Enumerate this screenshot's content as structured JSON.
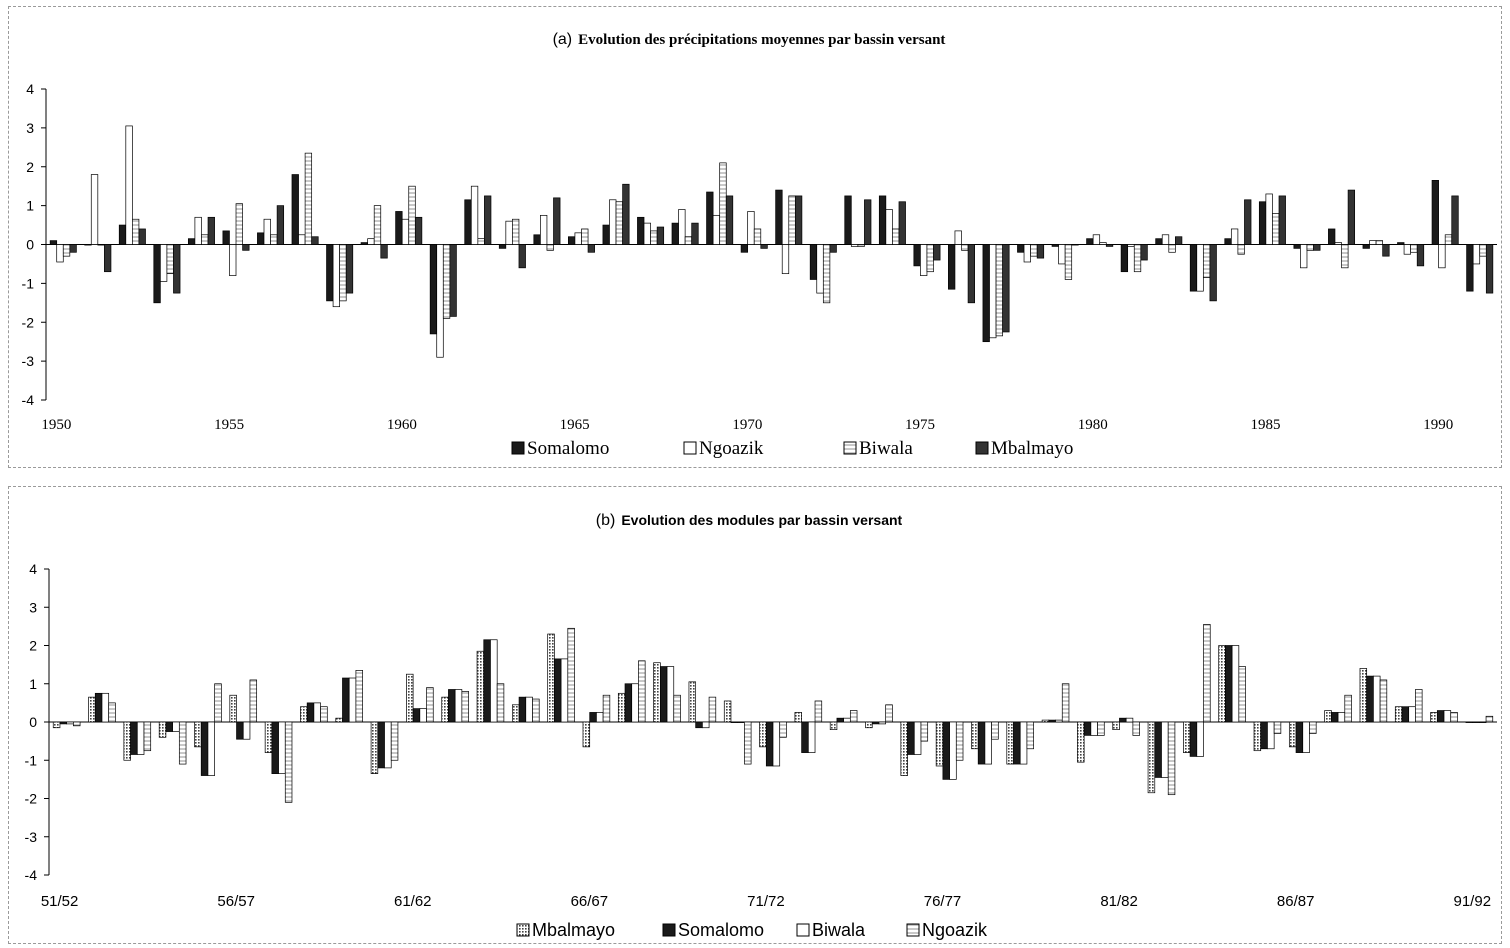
{
  "chart_data": [
    {
      "type": "bar",
      "title_prefix": "(a)",
      "title": "Evolution des précipitations moyennes par bassin versant",
      "x": [
        1950,
        1951,
        1952,
        1953,
        1954,
        1955,
        1956,
        1957,
        1958,
        1959,
        1960,
        1961,
        1962,
        1963,
        1964,
        1965,
        1966,
        1967,
        1968,
        1969,
        1970,
        1971,
        1972,
        1973,
        1974,
        1975,
        1976,
        1977,
        1978,
        1979,
        1980,
        1981,
        1982,
        1983,
        1984,
        1985,
        1986,
        1987,
        1988,
        1989,
        1990,
        1991
      ],
      "x_tick_labels": [
        "1950",
        "1955",
        "1960",
        "1965",
        "1970",
        "1975",
        "1980",
        "1985",
        "1990"
      ],
      "ylim": [
        -4,
        4
      ],
      "y_ticks": [
        "4",
        "3",
        "2",
        "1",
        "0",
        "-1",
        "-2",
        "-3",
        "-4"
      ],
      "legend_position": "bottom",
      "series": [
        {
          "name": "Somalomo",
          "color": "#1a1a1a",
          "values": [
            0.1,
            0.0,
            0.5,
            -1.5,
            0.15,
            0.35,
            0.3,
            1.8,
            -1.45,
            0.05,
            0.85,
            -2.3,
            1.15,
            -0.1,
            0.25,
            0.2,
            0.5,
            0.7,
            0.55,
            1.35,
            -0.2,
            1.4,
            -0.9,
            1.25,
            1.25,
            -0.55,
            -1.15,
            -2.5,
            -0.2,
            -0.05,
            0.15,
            -0.7,
            0.15,
            -1.2,
            0.15,
            1.1,
            -0.1,
            0.4,
            -0.1,
            0.05,
            1.65,
            -1.2
          ]
        },
        {
          "name": "Ngoazik",
          "color": "#ffffff",
          "values": [
            -0.45,
            1.8,
            3.05,
            -0.95,
            0.7,
            -0.8,
            0.65,
            0.25,
            -1.6,
            0.15,
            0.65,
            -2.9,
            1.5,
            0.6,
            0.75,
            0.3,
            1.15,
            0.55,
            0.9,
            0.75,
            0.85,
            -0.75,
            -1.25,
            -0.05,
            0.9,
            -0.8,
            0.35,
            -2.4,
            -0.45,
            -0.5,
            0.25,
            -0.05,
            0.25,
            -1.2,
            0.4,
            1.3,
            -0.6,
            0.05,
            0.1,
            -0.25,
            -0.6,
            -0.5
          ]
        },
        {
          "name": "Biwala",
          "color": "#ffffff",
          "values": [
            -0.3,
            0.0,
            0.65,
            -0.75,
            0.25,
            1.05,
            0.25,
            2.35,
            -1.45,
            1.0,
            1.5,
            -1.9,
            0.15,
            0.65,
            -0.15,
            0.4,
            1.1,
            0.35,
            0.2,
            2.1,
            0.4,
            1.25,
            -1.5,
            -0.05,
            0.4,
            -0.7,
            -0.15,
            -2.35,
            -0.3,
            -0.9,
            0.05,
            -0.7,
            -0.2,
            -0.85,
            -0.25,
            0.8,
            -0.15,
            -0.6,
            0.1,
            -0.2,
            0.25,
            -0.3
          ]
        },
        {
          "name": "Mbalmayo",
          "color": "#333333",
          "values": [
            -0.2,
            -0.7,
            0.4,
            -1.25,
            0.7,
            -0.15,
            1.0,
            0.2,
            -1.25,
            -0.35,
            0.7,
            -1.85,
            1.25,
            -0.6,
            1.2,
            -0.2,
            1.55,
            0.45,
            0.55,
            1.25,
            -0.1,
            1.25,
            -0.2,
            1.15,
            1.1,
            -0.4,
            -1.5,
            -2.25,
            -0.35,
            0.0,
            -0.05,
            -0.4,
            0.2,
            -1.45,
            1.15,
            1.25,
            -0.15,
            1.4,
            -0.3,
            -0.55,
            1.25,
            -1.25
          ]
        }
      ]
    },
    {
      "type": "bar",
      "title_prefix": "(b)",
      "title": "Evolution des modules par bassin versant",
      "x": [
        "51/52",
        "52/53",
        "53/54",
        "54/55",
        "55/56",
        "56/57",
        "57/58",
        "58/59",
        "59/60",
        "60/61",
        "61/62",
        "62/63",
        "63/64",
        "64/65",
        "65/66",
        "66/67",
        "67/68",
        "68/69",
        "69/70",
        "70/71",
        "71/72",
        "72/73",
        "73/74",
        "74/75",
        "75/76",
        "76/77",
        "77/78",
        "78/79",
        "79/80",
        "80/81",
        "81/82",
        "82/83",
        "83/84",
        "84/85",
        "85/86",
        "86/87",
        "87/88",
        "88/89",
        "89/90",
        "90/91",
        "91/92"
      ],
      "x_tick_labels": [
        "51/52",
        "56/57",
        "61/62",
        "66/67",
        "71/72",
        "76/77",
        "81/82",
        "86/87",
        "91/92"
      ],
      "ylim": [
        -4,
        4
      ],
      "y_ticks": [
        "4",
        "3",
        "2",
        "1",
        "0",
        "-1",
        "-2",
        "-3",
        "-4"
      ],
      "legend_position": "bottom",
      "series": [
        {
          "name": "Mbalmayo",
          "color": "#9a9a9a",
          "values": [
            -0.15,
            0.65,
            -1.0,
            -0.4,
            -0.65,
            0.7,
            -0.8,
            0.4,
            0.1,
            -1.35,
            1.25,
            0.65,
            1.85,
            0.45,
            2.3,
            -0.65,
            0.75,
            1.55,
            1.05,
            0.55,
            -0.65,
            0.25,
            -0.2,
            -0.15,
            -1.4,
            -1.15,
            -0.7,
            -1.1,
            0.05,
            -1.05,
            -0.2,
            -1.85,
            -0.8,
            2.0,
            -0.75,
            -0.65,
            0.3,
            1.4,
            0.4,
            0.25,
            0.0
          ]
        },
        {
          "name": "Somalomo",
          "color": "#1a1a1a",
          "values": [
            -0.05,
            0.75,
            -0.85,
            -0.25,
            -1.4,
            -0.45,
            -1.35,
            0.5,
            1.15,
            -1.2,
            0.35,
            0.85,
            2.15,
            0.65,
            1.65,
            0.25,
            1.0,
            1.45,
            -0.15,
            0.0,
            -1.15,
            -0.8,
            0.1,
            -0.05,
            -0.85,
            -1.5,
            -1.1,
            -1.1,
            0.05,
            -0.35,
            0.1,
            -1.45,
            -0.9,
            2.0,
            -0.7,
            -0.8,
            0.25,
            1.2,
            0.4,
            0.3,
            0.0
          ]
        },
        {
          "name": "Biwala",
          "color": "#ffffff",
          "values": [
            -0.05,
            0.75,
            -0.85,
            -0.25,
            -1.4,
            -0.45,
            -1.35,
            0.5,
            1.15,
            -1.2,
            0.35,
            0.85,
            2.15,
            0.65,
            1.65,
            0.25,
            1.0,
            1.45,
            -0.15,
            0.0,
            -1.15,
            -0.8,
            0.1,
            -0.05,
            -0.85,
            -1.5,
            -1.1,
            -1.1,
            0.05,
            -0.35,
            0.1,
            -1.45,
            -0.9,
            2.0,
            -0.7,
            -0.8,
            0.25,
            1.2,
            0.4,
            0.3,
            0.0
          ]
        },
        {
          "name": "Ngoazik",
          "color": "#cccccc",
          "values": [
            -0.1,
            0.5,
            -0.75,
            -1.1,
            1.0,
            1.1,
            -2.1,
            0.4,
            1.35,
            -1.0,
            0.9,
            0.8,
            1.0,
            0.6,
            2.45,
            0.7,
            1.6,
            0.7,
            0.65,
            -1.1,
            -0.4,
            0.55,
            0.3,
            0.45,
            -0.5,
            -1.0,
            -0.45,
            -0.7,
            1.0,
            -0.35,
            -0.35,
            -1.9,
            2.55,
            1.45,
            -0.3,
            -0.3,
            0.7,
            1.1,
            0.85,
            0.25,
            0.15
          ]
        }
      ]
    }
  ]
}
